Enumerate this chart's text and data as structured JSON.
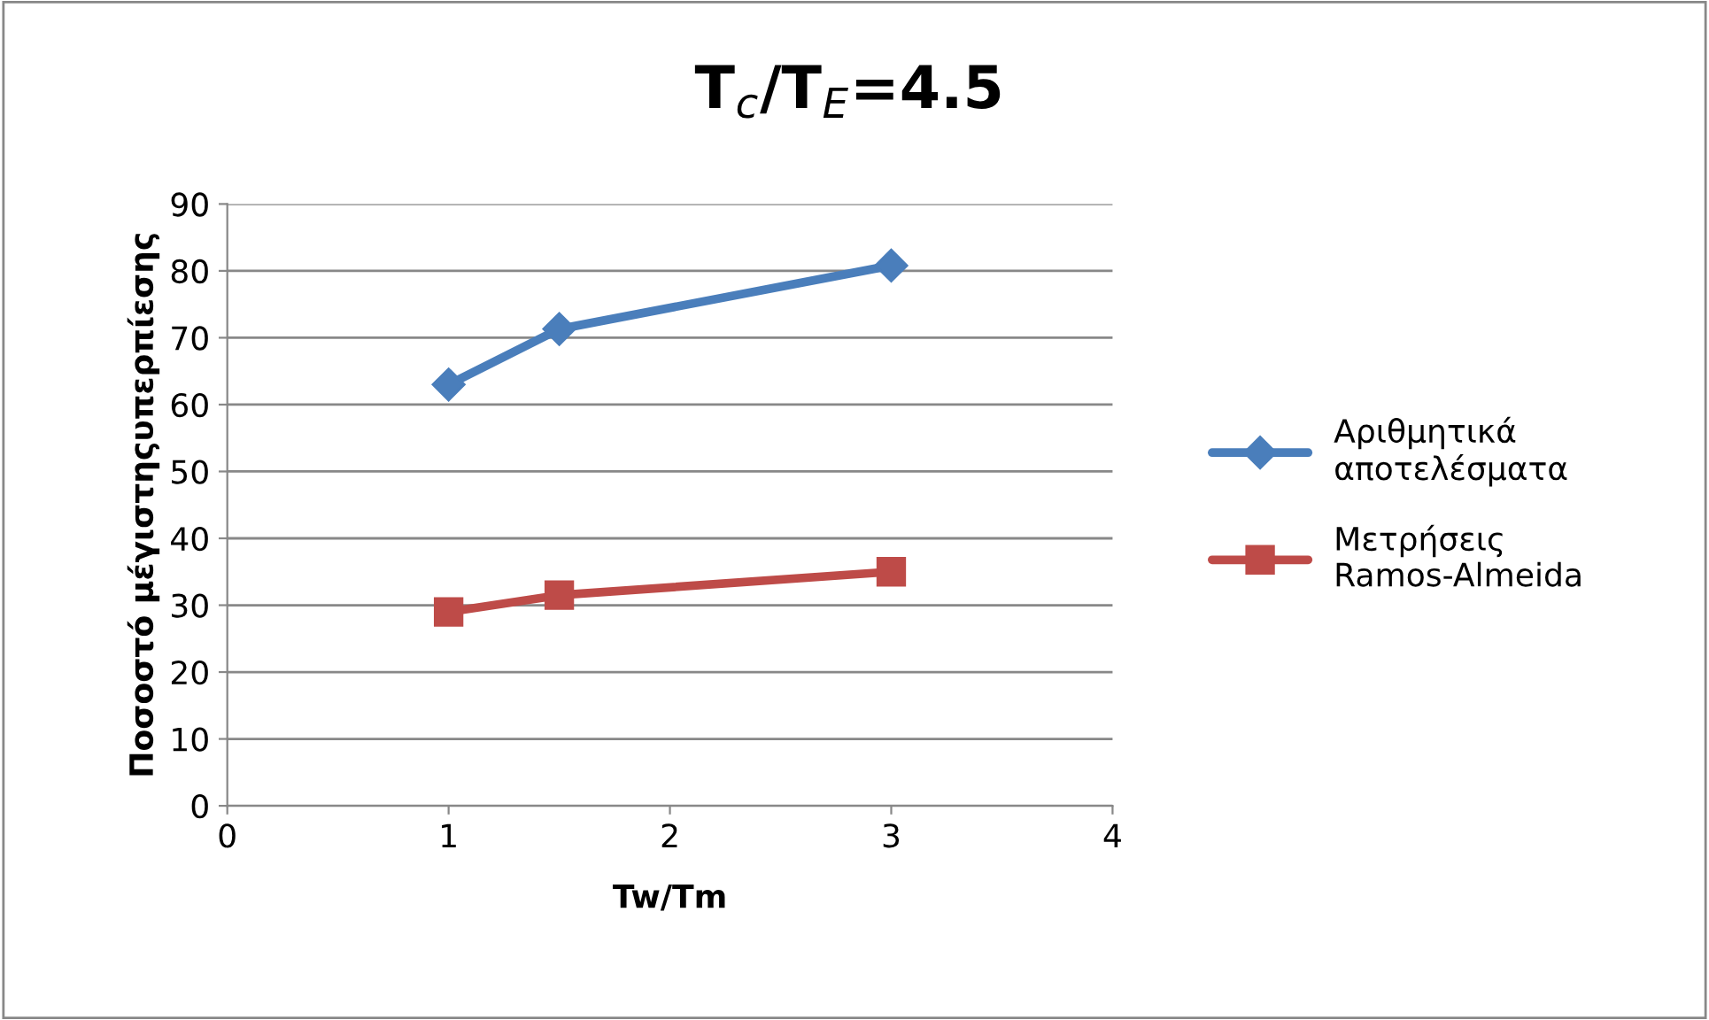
{
  "chart_data": {
    "type": "line",
    "title": "T$_{c}$/T$_{E}$=4.5",
    "xlabel": "Tw/Tm",
    "ylabel": "Ποσοστό μέγιστηςυπερπίεσης",
    "x": [
      1,
      1.5,
      3
    ],
    "series": [
      {
        "name": "Αριθμητικά αποτελέσματα",
        "color": "#4a7ebb",
        "marker": "diamond",
        "values": [
          63,
          71.3,
          80.8
        ]
      },
      {
        "name": "Μετρήσεις Ramos-Almeida",
        "color": "#be4b48",
        "marker": "square",
        "values": [
          29,
          31.5,
          35
        ]
      }
    ],
    "xlim": [
      0,
      4
    ],
    "xticks": [
      0,
      1,
      2,
      3,
      4
    ],
    "ylim": [
      0,
      90
    ],
    "yticks": [
      0,
      10,
      20,
      30,
      40,
      50,
      60,
      70,
      80,
      90
    ],
    "grid": "y",
    "legend": "right",
    "line_style": "solid"
  }
}
